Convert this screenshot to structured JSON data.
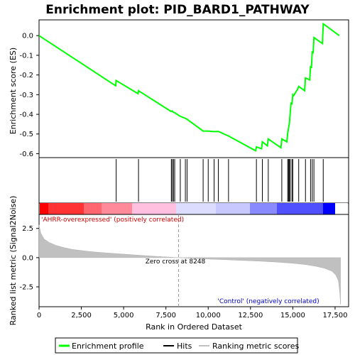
{
  "chart_data": {
    "type": "line",
    "title": "Enrichment plot: PID_BARD1_PATHWAY",
    "top_panel": {
      "ylabel": "Enrichment score (ES)",
      "ylim": [
        -0.62,
        0.08
      ],
      "yticks": [
        0.0,
        -0.1,
        -0.2,
        -0.3,
        -0.4,
        -0.5,
        -0.6
      ],
      "ytick_labels": [
        "0.0",
        "-0.1",
        "-0.2",
        "-0.3",
        "-0.4",
        "-0.5",
        "-0.6"
      ],
      "series": [
        {
          "name": "Enrichment profile",
          "color": "#00ff00",
          "x": [
            0,
            4530,
            4560,
            5850,
            5880,
            7800,
            7870,
            7950,
            8020,
            8350,
            8650,
            8750,
            9700,
            10000,
            10350,
            10600,
            11200,
            12800,
            12850,
            13150,
            13200,
            13500,
            13550,
            14300,
            14350,
            14650,
            14700,
            14800,
            14850,
            14900,
            14950,
            15000,
            15050,
            15300,
            15350,
            15700,
            15750,
            16000,
            16050,
            16100,
            16150,
            16200,
            16250,
            16750,
            16800,
            17750
          ],
          "y": [
            0.0,
            -0.255,
            -0.228,
            -0.295,
            -0.28,
            -0.385,
            -0.383,
            -0.39,
            -0.392,
            -0.41,
            -0.42,
            -0.425,
            -0.485,
            -0.485,
            -0.488,
            -0.487,
            -0.51,
            -0.585,
            -0.565,
            -0.575,
            -0.54,
            -0.56,
            -0.525,
            -0.57,
            -0.525,
            -0.54,
            -0.495,
            -0.445,
            -0.39,
            -0.34,
            -0.35,
            -0.3,
            -0.305,
            -0.27,
            -0.258,
            -0.28,
            -0.215,
            -0.225,
            -0.155,
            -0.165,
            -0.08,
            -0.09,
            -0.01,
            -0.04,
            0.06,
            0.0
          ]
        }
      ]
    },
    "hits": {
      "name": "Hits",
      "x": [
        4560,
        5880,
        7820,
        7880,
        7950,
        8020,
        8350,
        8650,
        8750,
        9700,
        10000,
        10350,
        10600,
        11200,
        12850,
        13200,
        13550,
        14350,
        14700,
        14750,
        14800,
        14850,
        14950,
        15000,
        15350,
        15750,
        16050,
        16150,
        16250,
        16800
      ]
    },
    "bottom_panel": {
      "ylabel": "Ranked list metric (Signal2Noise)",
      "xlabel": "Rank in Ordered Dataset",
      "ylim": [
        -4.2,
        3.7
      ],
      "yticks": [
        2.5,
        0.0,
        -2.5
      ],
      "ytick_labels": [
        "2.5",
        "0.0",
        "-2.5"
      ],
      "xlim": [
        0,
        18300
      ],
      "xticks": [
        0,
        2500,
        5000,
        7500,
        10000,
        12500,
        15000,
        17500
      ],
      "xtick_labels": [
        "0",
        "2,500",
        "5,000",
        "7,500",
        "10,000",
        "12,500",
        "15,000",
        "17,500"
      ],
      "metric_curve": {
        "name": "Ranking metric scores",
        "color": "#c0c0c0",
        "x": [
          0,
          100,
          300,
          600,
          1000,
          1500,
          2000,
          3000,
          4000,
          5000,
          6000,
          7000,
          8248,
          9000,
          10000,
          11000,
          12000,
          13000,
          14000,
          15000,
          15800,
          16400,
          16900,
          17300,
          17550,
          17700,
          17780,
          17820
        ],
        "y": [
          2.8,
          2.1,
          1.6,
          1.3,
          1.05,
          0.85,
          0.7,
          0.52,
          0.4,
          0.3,
          0.2,
          0.1,
          0.0,
          -0.06,
          -0.12,
          -0.18,
          -0.24,
          -0.3,
          -0.38,
          -0.48,
          -0.6,
          -0.75,
          -0.92,
          -1.15,
          -1.5,
          -2.0,
          -3.0,
          -4.0
        ]
      },
      "zero_cross": 8248,
      "zero_cross_label": "Zero cross at 8248",
      "pos_label": "'AHRR-overexpressed' (positively correlated)",
      "neg_label": "'Control' (negatively correlated)"
    },
    "legend": [
      {
        "label": "Enrichment profile",
        "color": "#00ff00"
      },
      {
        "label": "Hits",
        "color": "#000000"
      },
      {
        "label": "Ranking metric scores",
        "color": "#c0c0c0"
      }
    ]
  }
}
